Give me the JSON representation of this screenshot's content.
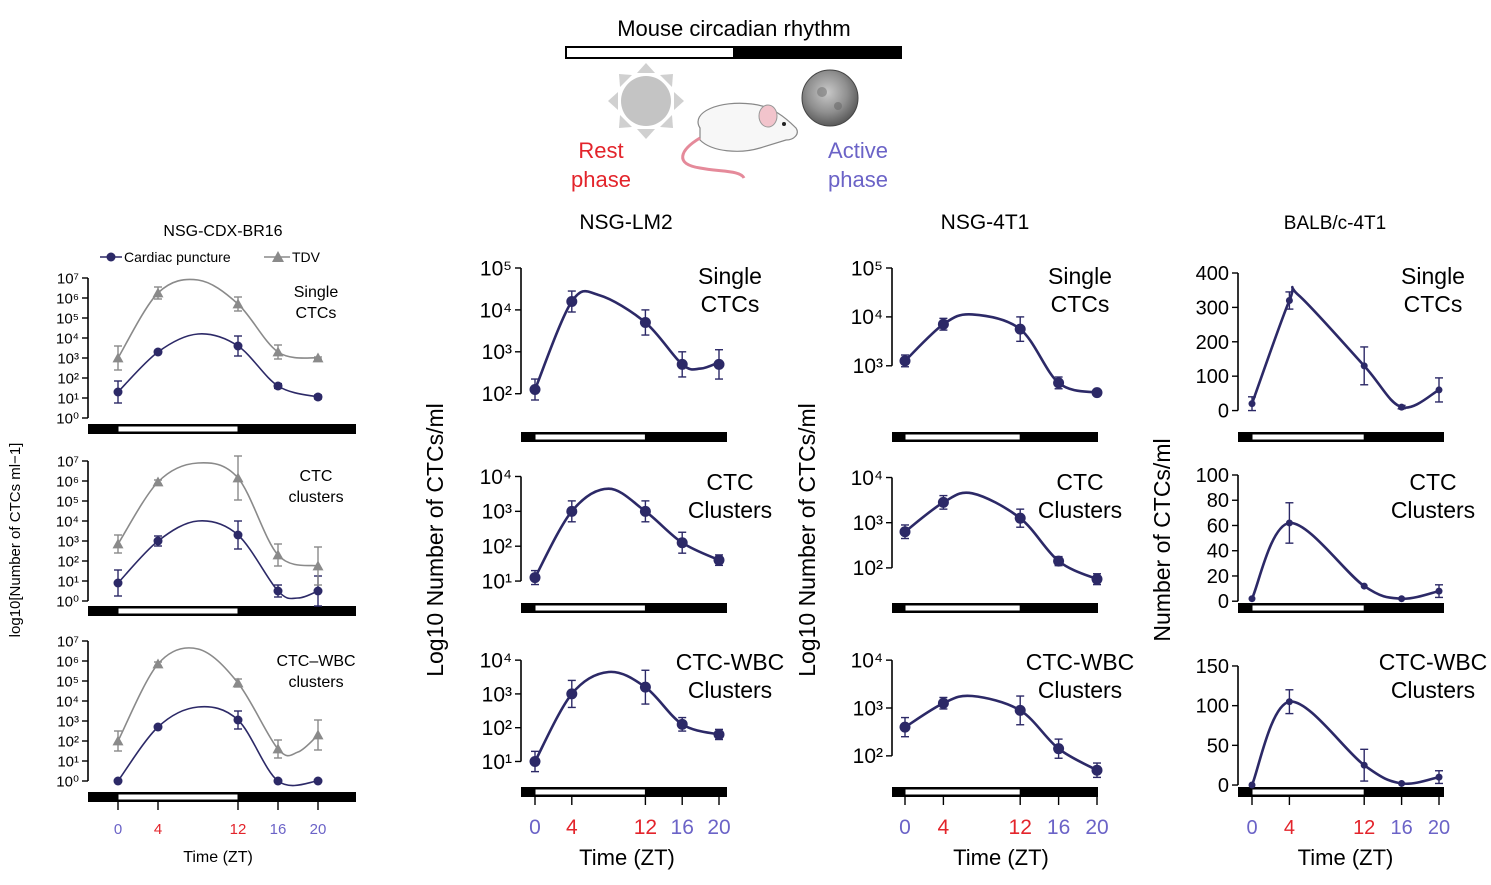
{
  "header": {
    "title": "Mouse circadian rhythm",
    "rest_label_1": "Rest",
    "rest_label_2": "phase",
    "active_label_1": "Active",
    "active_label_2": "phase"
  },
  "colors": {
    "navy": "#2c2967",
    "gray": "#8a8a8a",
    "red": "#e3242b",
    "purple": "#6b63c7",
    "black": "#000000"
  },
  "shared": {
    "xlabel": "Time (ZT)",
    "xticks": [
      "0",
      "4",
      "12",
      "16",
      "20"
    ],
    "xtick_colors": [
      "purple",
      "red",
      "red",
      "purple",
      "purple"
    ]
  },
  "chart_data": [
    {
      "id": "p1",
      "type": "line",
      "title": "NSG-CDX-BR16",
      "ylabel": "log10[Number of CTCs ml−1]",
      "legend": [
        "Cardiac puncture",
        "TDV"
      ],
      "x": [
        0,
        4,
        12,
        16,
        20
      ],
      "subplots": [
        {
          "label": [
            "Single",
            "CTCs"
          ],
          "yticks": [
            "10⁰",
            "10¹",
            "10²",
            "10³",
            "10⁴",
            "10⁵",
            "10⁶",
            "10⁷"
          ],
          "ylim": [
            0,
            7
          ],
          "series": [
            {
              "name": "Cardiac puncture",
              "values": [
                1.3,
                3.3,
                3.6,
                1.6,
                1.05
              ],
              "err": [
                0.55,
                0.08,
                0.5,
                0.12,
                0.1
              ],
              "fit": [
                [
                  0,
                  1.3
                ],
                [
                  4,
                  3.3
                ],
                [
                  8,
                  4.2
                ],
                [
                  12,
                  3.6
                ],
                [
                  16,
                  1.6
                ],
                [
                  20,
                  1.05
                ]
              ]
            },
            {
              "name": "TDV",
              "values": [
                3.0,
                6.25,
                5.7,
                3.3,
                3.0
              ],
              "err": [
                0.6,
                0.3,
                0.35,
                0.35,
                0.05
              ],
              "fit": [
                [
                  0,
                  3.0
                ],
                [
                  4,
                  6.25
                ],
                [
                  8,
                  6.9
                ],
                [
                  12,
                  5.7
                ],
                [
                  16,
                  3.3
                ],
                [
                  20,
                  3.0
                ]
              ]
            }
          ]
        },
        {
          "label": [
            "CTC",
            "clusters"
          ],
          "yticks": [
            "10⁰",
            "10¹",
            "10²",
            "10³",
            "10⁴",
            "10⁵",
            "10⁶",
            "10⁷"
          ],
          "ylim": [
            0,
            7
          ],
          "series": [
            {
              "name": "Cardiac puncture",
              "values": [
                0.9,
                3.0,
                3.3,
                0.5,
                0.5
              ],
              "err": [
                0.65,
                0.25,
                0.7,
                0.3,
                0.75
              ],
              "fit": [
                [
                  0,
                  0.9
                ],
                [
                  4,
                  3.0
                ],
                [
                  8,
                  4.0
                ],
                [
                  12,
                  3.3
                ],
                [
                  16,
                  0.5
                ],
                [
                  18,
                  0.15
                ],
                [
                  20,
                  0.5
                ]
              ]
            },
            {
              "name": "TDV",
              "values": [
                2.85,
                5.95,
                6.15,
                2.3,
                1.75
              ],
              "err": [
                0.45,
                0.1,
                1.1,
                0.55,
                0.95
              ],
              "fit": [
                [
                  0,
                  2.85
                ],
                [
                  4,
                  5.95
                ],
                [
                  8,
                  6.9
                ],
                [
                  12,
                  6.15
                ],
                [
                  16,
                  2.3
                ],
                [
                  20,
                  1.75
                ]
              ]
            }
          ]
        },
        {
          "label": [
            "CTC–WBC",
            "clusters"
          ],
          "yticks": [
            "10⁰",
            "10¹",
            "10²",
            "10³",
            "10⁴",
            "10⁵",
            "10⁶",
            "10⁷"
          ],
          "ylim": [
            0,
            7
          ],
          "series": [
            {
              "name": "Cardiac puncture",
              "values": [
                0.0,
                2.7,
                3.05,
                0.0,
                0.0
              ],
              "err": [
                0.0,
                0.05,
                0.45,
                0.0,
                0.0
              ],
              "fit": [
                [
                  0,
                  0.0
                ],
                [
                  4,
                  2.7
                ],
                [
                  8,
                  3.7
                ],
                [
                  12,
                  3.05
                ],
                [
                  16,
                  0.0
                ],
                [
                  20,
                  0.0
                ]
              ]
            },
            {
              "name": "TDV",
              "values": [
                2.0,
                5.85,
                4.9,
                1.6,
                2.3
              ],
              "err": [
                0.5,
                0.1,
                0.2,
                0.45,
                0.75
              ],
              "fit": [
                [
                  0,
                  2.0
                ],
                [
                  4,
                  5.85
                ],
                [
                  8,
                  6.6
                ],
                [
                  12,
                  4.9
                ],
                [
                  16,
                  1.6
                ],
                [
                  18,
                  1.45
                ],
                [
                  20,
                  2.3
                ]
              ]
            }
          ]
        }
      ]
    },
    {
      "id": "p2",
      "type": "line",
      "title": "NSG-LM2",
      "ylabel": "Log10 Number of CTCs/ml",
      "x": [
        0,
        4,
        12,
        16,
        20
      ],
      "subplots": [
        {
          "label": [
            "Single",
            "CTCs"
          ],
          "yticks": [
            "10²",
            "10³",
            "10⁴",
            "10⁵"
          ],
          "ylim": [
            1.85,
            5
          ],
          "series": [
            {
              "name": "Cardiac puncture",
              "values": [
                2.1,
                4.2,
                3.7,
                2.7,
                2.7
              ],
              "err": [
                0.25,
                0.25,
                0.3,
                0.3,
                0.35
              ],
              "fit": [
                [
                  0,
                  2.1
                ],
                [
                  4,
                  4.2
                ],
                [
                  7,
                  4.35
                ],
                [
                  12,
                  3.7
                ],
                [
                  16,
                  2.7
                ],
                [
                  18,
                  2.6
                ],
                [
                  20,
                  2.75
                ]
              ]
            }
          ]
        },
        {
          "label": [
            "CTC",
            "Clusters"
          ],
          "yticks": [
            "10¹",
            "10²",
            "10³",
            "10⁴"
          ],
          "ylim": [
            0.6,
            4.1
          ],
          "series": [
            {
              "name": "Cardiac puncture",
              "values": [
                1.1,
                3.0,
                3.0,
                2.1,
                1.6
              ],
              "err": [
                0.2,
                0.3,
                0.3,
                0.3,
                0.15
              ],
              "fit": [
                [
                  0,
                  1.1
                ],
                [
                  4,
                  3.0
                ],
                [
                  8,
                  3.65
                ],
                [
                  12,
                  3.0
                ],
                [
                  16,
                  2.1
                ],
                [
                  20,
                  1.6
                ]
              ]
            }
          ]
        },
        {
          "label": [
            "CTC-WBC",
            "Clusters"
          ],
          "yticks": [
            "10¹",
            "10²",
            "10³",
            "10⁴"
          ],
          "ylim": [
            0.6,
            4.3
          ],
          "series": [
            {
              "name": "Cardiac puncture",
              "values": [
                1.0,
                3.0,
                3.2,
                2.1,
                1.8
              ],
              "err": [
                0.3,
                0.4,
                0.5,
                0.2,
                0.15
              ],
              "fit": [
                [
                  0,
                  1.0
                ],
                [
                  4,
                  3.0
                ],
                [
                  8,
                  3.65
                ],
                [
                  12,
                  3.2
                ],
                [
                  16,
                  2.1
                ],
                [
                  20,
                  1.8
                ]
              ]
            }
          ]
        }
      ]
    },
    {
      "id": "p3",
      "type": "line",
      "title": "NSG-4T1",
      "ylabel": "Log10 Number of CTCs/ml",
      "x": [
        0,
        4,
        12,
        16,
        20
      ],
      "subplots": [
        {
          "label": [
            "Single",
            "CTCs"
          ],
          "yticks": [
            "10³",
            "10⁴",
            "10⁵"
          ],
          "ylim": [
            2.3,
            5
          ],
          "series": [
            {
              "name": "Cardiac puncture",
              "values": [
                3.1,
                3.85,
                3.75,
                2.65,
                2.45
              ],
              "err": [
                0.12,
                0.12,
                0.25,
                0.12,
                0.03
              ],
              "fit": [
                [
                  0,
                  3.1
                ],
                [
                  4,
                  3.85
                ],
                [
                  7,
                  4.05
                ],
                [
                  12,
                  3.75
                ],
                [
                  16,
                  2.65
                ],
                [
                  20,
                  2.45
                ]
              ]
            }
          ]
        },
        {
          "label": [
            "CTC",
            "Clusters"
          ],
          "yticks": [
            "10²",
            "10³",
            "10⁴"
          ],
          "ylim": [
            1.4,
            4.1
          ],
          "series": [
            {
              "name": "Cardiac puncture",
              "values": [
                2.8,
                3.45,
                3.1,
                2.15,
                1.75
              ],
              "err": [
                0.15,
                0.15,
                0.2,
                0.1,
                0.12
              ],
              "fit": [
                [
                  0,
                  2.8
                ],
                [
                  4,
                  3.45
                ],
                [
                  7,
                  3.65
                ],
                [
                  12,
                  3.1
                ],
                [
                  16,
                  2.15
                ],
                [
                  20,
                  1.75
                ]
              ]
            }
          ]
        },
        {
          "label": [
            "CTC-WBC",
            "Clusters"
          ],
          "yticks": [
            "10²",
            "10³",
            "10⁴"
          ],
          "ylim": [
            1.6,
            4.4
          ],
          "series": [
            {
              "name": "Cardiac puncture",
              "values": [
                2.6,
                3.1,
                2.95,
                2.15,
                1.7
              ],
              "err": [
                0.2,
                0.12,
                0.3,
                0.2,
                0.15
              ],
              "fit": [
                [
                  0,
                  2.6
                ],
                [
                  4,
                  3.1
                ],
                [
                  7,
                  3.25
                ],
                [
                  12,
                  2.95
                ],
                [
                  16,
                  2.15
                ],
                [
                  20,
                  1.7
                ]
              ]
            }
          ]
        }
      ]
    },
    {
      "id": "p4",
      "type": "line",
      "title": "BALB/c-4T1",
      "ylabel": "Number of CTCs/ml",
      "x": [
        0,
        4,
        12,
        16,
        20
      ],
      "subplots": [
        {
          "label": [
            "Single",
            "CTCs"
          ],
          "yticks": [
            "0",
            "100",
            "200",
            "300",
            "400"
          ],
          "ylim": [
            -10,
            400
          ],
          "series": [
            {
              "name": "Cardiac puncture",
              "values": [
                20,
                320,
                130,
                10,
                60
              ],
              "err": [
                20,
                25,
                55,
                5,
                35
              ],
              "fit": [
                [
                  0,
                  20
                ],
                [
                  4,
                  320
                ],
                [
                  5,
                  335
                ],
                [
                  12,
                  130
                ],
                [
                  16,
                  10
                ],
                [
                  20,
                  60
                ]
              ]
            }
          ]
        },
        {
          "label": [
            "CTC",
            "Clusters"
          ],
          "yticks": [
            "0",
            "20",
            "40",
            "60",
            "80",
            "100"
          ],
          "ylim": [
            -3,
            100
          ],
          "series": [
            {
              "name": "Cardiac puncture",
              "values": [
                2,
                62,
                12,
                2,
                8
              ],
              "err": [
                0,
                16,
                0,
                0,
                5
              ],
              "fit": [
                [
                  0,
                  2
                ],
                [
                  4,
                  62
                ],
                [
                  12,
                  12
                ],
                [
                  16,
                  2
                ],
                [
                  20,
                  8
                ]
              ]
            }
          ]
        },
        {
          "label": [
            "CTC-WBC",
            "Clusters"
          ],
          "yticks": [
            "0",
            "50",
            "100",
            "150"
          ],
          "ylim": [
            -5,
            155
          ],
          "series": [
            {
              "name": "Cardiac puncture",
              "values": [
                0,
                105,
                25,
                2,
                10
              ],
              "err": [
                0,
                15,
                20,
                0,
                8
              ],
              "fit": [
                [
                  0,
                  0
                ],
                [
                  4,
                  105
                ],
                [
                  12,
                  25
                ],
                [
                  16,
                  2
                ],
                [
                  20,
                  10
                ]
              ]
            }
          ]
        }
      ]
    }
  ]
}
